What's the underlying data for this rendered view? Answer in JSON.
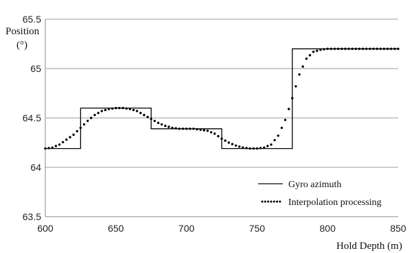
{
  "chart_data": {
    "type": "line",
    "title": "",
    "ylabel_line1": "Position",
    "ylabel_line2": "(°)",
    "xlabel": "Hold Depth (m)",
    "xlim": [
      600,
      850
    ],
    "ylim": [
      63.5,
      65.5
    ],
    "x_ticks": [
      "600",
      "650",
      "700",
      "750",
      "800",
      "850"
    ],
    "y_ticks": [
      "65.5",
      "65",
      "64.5",
      "64",
      "63.5"
    ],
    "grid": "horizontal",
    "legend_position": "bottom-right",
    "series": [
      {
        "name": "Gyro azimuth",
        "style": "solid",
        "color": "#000000",
        "x": [
          600,
          625,
          625,
          675,
          675,
          725,
          725,
          775,
          775,
          850
        ],
        "y": [
          64.19,
          64.19,
          64.6,
          64.6,
          64.39,
          64.39,
          64.19,
          64.19,
          65.2,
          65.2
        ]
      },
      {
        "name": "Interpolation processing",
        "style": "dotted",
        "color": "#000000",
        "x": [
          600,
          605,
          610,
          615,
          620,
          625,
          630,
          635,
          640,
          645,
          650,
          655,
          660,
          665,
          670,
          675,
          680,
          685,
          690,
          695,
          700,
          705,
          710,
          715,
          720,
          725,
          730,
          735,
          740,
          745,
          750,
          755,
          760,
          765,
          770,
          775,
          780,
          785,
          790,
          795,
          800,
          805,
          810,
          815,
          820,
          825,
          830,
          835,
          840,
          845,
          850
        ],
        "y": [
          64.19,
          64.2,
          64.23,
          64.28,
          64.33,
          64.4,
          64.47,
          64.53,
          64.57,
          64.59,
          64.6,
          64.6,
          64.59,
          64.57,
          64.53,
          64.49,
          64.45,
          64.42,
          64.4,
          64.39,
          64.39,
          64.39,
          64.38,
          64.37,
          64.34,
          64.29,
          64.25,
          64.22,
          64.2,
          64.19,
          64.19,
          64.2,
          64.23,
          64.32,
          64.48,
          64.7,
          64.94,
          65.1,
          65.17,
          65.19,
          65.2,
          65.2,
          65.2,
          65.2,
          65.2,
          65.2,
          65.2,
          65.2,
          65.2,
          65.2,
          65.2
        ]
      }
    ]
  }
}
